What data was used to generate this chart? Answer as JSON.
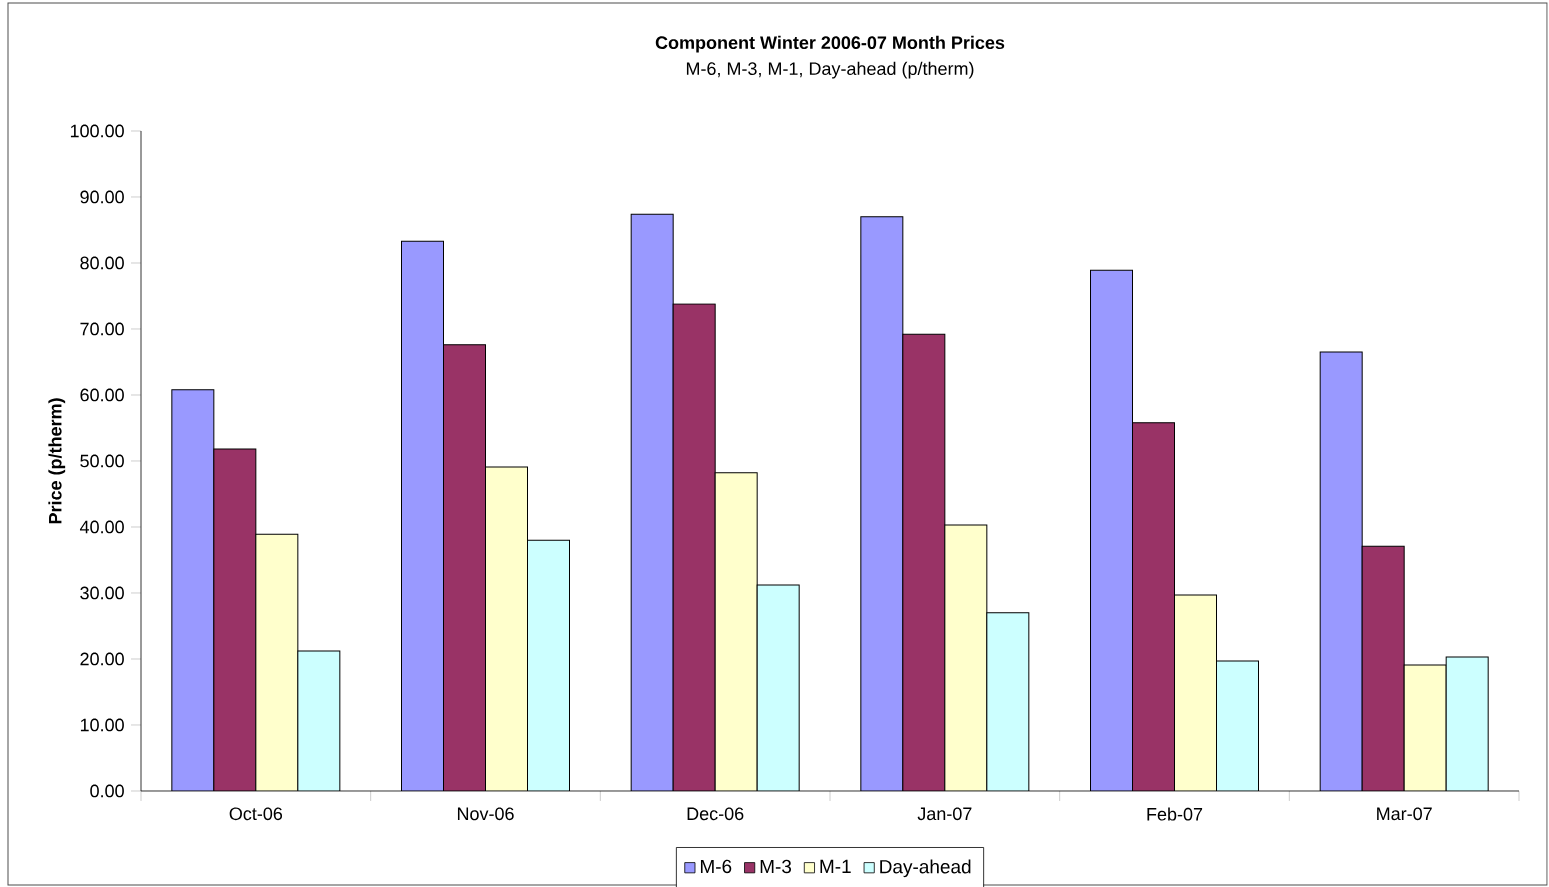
{
  "chart_data": {
    "type": "bar",
    "title": "Component Winter 2006-07 Month Prices",
    "subtitle": "M-6, M-3, M-1, Day-ahead (p/therm)",
    "ylabel": "Price (p/therm)",
    "categories": [
      "Oct-06",
      "Nov-06",
      "Dec-06",
      "Jan-07",
      "Feb-07",
      "Mar-07"
    ],
    "series": [
      {
        "name": "M-6",
        "color": "#9999ff",
        "values": [
          60.8,
          83.3,
          87.4,
          87.0,
          78.9,
          66.5
        ]
      },
      {
        "name": "M-3",
        "color": "#993366",
        "values": [
          51.8,
          67.6,
          73.8,
          69.2,
          55.8,
          37.1
        ]
      },
      {
        "name": "M-1",
        "color": "#ffffcc",
        "values": [
          38.9,
          49.1,
          48.2,
          40.3,
          29.7,
          19.1
        ]
      },
      {
        "name": "Day-ahead",
        "color": "#ccffff",
        "values": [
          21.2,
          38.0,
          31.2,
          27.0,
          19.7,
          20.3
        ]
      }
    ],
    "ylim": [
      0,
      100
    ],
    "yticks": [
      {
        "value": 0,
        "label": "0.00"
      },
      {
        "value": 10,
        "label": "10.00"
      },
      {
        "value": 20,
        "label": "20.00"
      },
      {
        "value": 30,
        "label": "30.00"
      },
      {
        "value": 40,
        "label": "40.00"
      },
      {
        "value": 50,
        "label": "50.00"
      },
      {
        "value": 60,
        "label": "60.00"
      },
      {
        "value": 70,
        "label": "70.00"
      },
      {
        "value": 80,
        "label": "80.00"
      },
      {
        "value": 90,
        "label": "90.00"
      },
      {
        "value": 100,
        "label": "100.00"
      }
    ],
    "grid": false,
    "legend": "bottom"
  }
}
